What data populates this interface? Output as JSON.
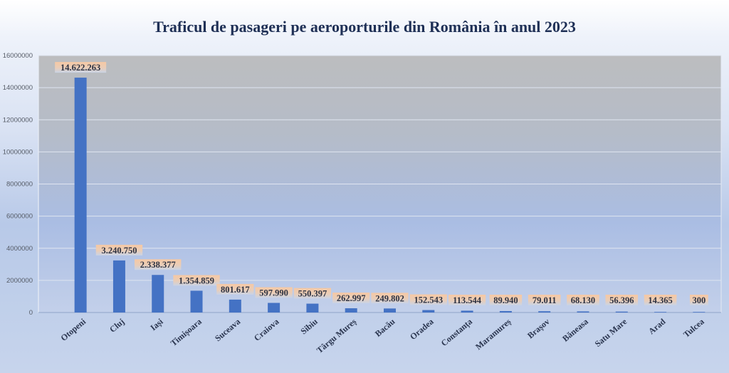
{
  "chart_data": {
    "type": "bar",
    "title": "Traficul de pasageri pe aeroporturile din România în anul 2023",
    "xlabel": "",
    "ylabel": "",
    "ylim": [
      0,
      16000000
    ],
    "yticks": [
      0,
      2000000,
      4000000,
      6000000,
      8000000,
      10000000,
      12000000,
      14000000,
      16000000
    ],
    "ytick_labels": [
      "0",
      "2000000",
      "4000000",
      "6000000",
      "8000000",
      "10000000",
      "12000000",
      "14000000",
      "16000000"
    ],
    "grid": true,
    "legend": "none",
    "categories": [
      "Otopeni",
      "Cluj",
      "Iași",
      "Timișoara",
      "Suceava",
      "Craiova",
      "Sibiu",
      "Târgu Mureș",
      "Bacău",
      "Oradea",
      "Constanța",
      "Maramureș",
      "Brașov",
      "Băneasa",
      "Satu Mare",
      "Arad",
      "Tulcea"
    ],
    "values": [
      14622263,
      3240750,
      2338377,
      1354859,
      801617,
      597990,
      550397,
      262997,
      249802,
      152543,
      113544,
      89940,
      79011,
      68130,
      56396,
      14365,
      300
    ],
    "data_labels": [
      "14.622.263",
      "3.240.750",
      "2.338.377",
      "1.354.859",
      "801.617",
      "597.990",
      "550.397",
      "262.997",
      "249.802",
      "152.543",
      "113.544",
      "89.940",
      "79.011",
      "68.130",
      "56.396",
      "14.365",
      "300"
    ],
    "colors": {
      "bar": "#4472c4",
      "label_bg_top": "#f6c8a4",
      "label_bg_bottom": "#c9d3e6",
      "gridline": "#dfe5f0",
      "title": "#1f3056"
    }
  }
}
